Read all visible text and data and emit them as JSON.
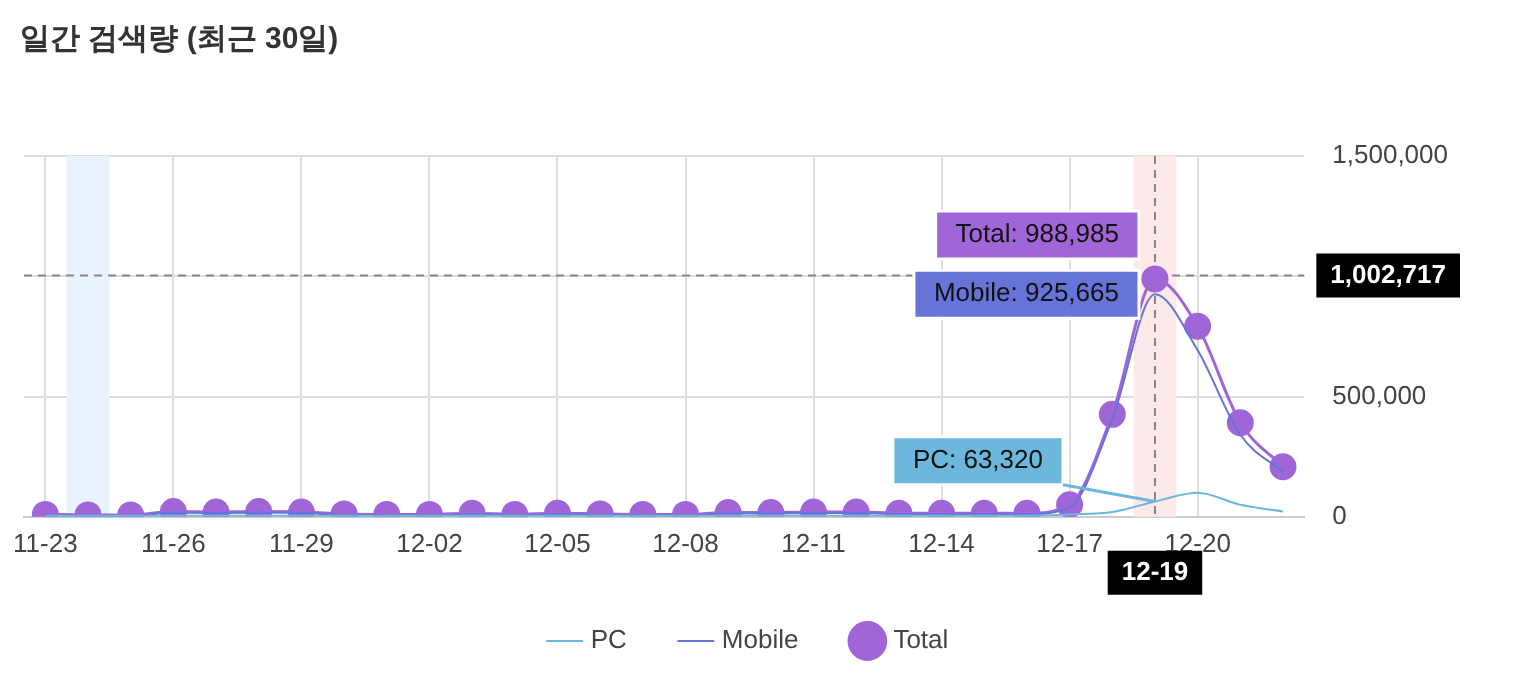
{
  "chart_data": {
    "type": "line",
    "title": "일간 검색량 (최근 30일)",
    "x": [
      "--11-23",
      "--11-24",
      "--11-25",
      "--11-26",
      "--11-27",
      "--11-28",
      "--11-29",
      "--11-30",
      "--12-01",
      "--12-02",
      "--12-03",
      "--12-04",
      "--12-05",
      "--12-06",
      "--12-07",
      "--12-08",
      "--12-09",
      "--12-10",
      "--12-11",
      "--12-12",
      "--12-13",
      "--12-14",
      "--12-15",
      "--12-16",
      "--12-17",
      "--12-18",
      "--12-19",
      "--12-20",
      "--12-21",
      "--12-22"
    ],
    "series": [
      {
        "name": "PC",
        "color": "#6cb8dc",
        "marker": "none",
        "values": [
          4000,
          4000,
          4000,
          4000,
          4000,
          4000,
          4000,
          4000,
          4000,
          4000,
          4000,
          4000,
          4000,
          4000,
          4000,
          4000,
          4000,
          4000,
          4000,
          4000,
          4000,
          4000,
          4000,
          4000,
          10000,
          20000,
          63320,
          100000,
          50000,
          22000
        ]
      },
      {
        "name": "Mobile",
        "color": "#6674d8",
        "marker": "none",
        "values": [
          6000,
          4000,
          4000,
          18000,
          16000,
          18000,
          16000,
          8000,
          6000,
          6000,
          11000,
          6000,
          11000,
          8000,
          6000,
          6000,
          14000,
          14000,
          16000,
          16000,
          11000,
          11000,
          11000,
          11000,
          40000,
          406000,
          925665,
          692000,
          341000,
          186000
        ]
      },
      {
        "name": "Total",
        "color": "#a066d8",
        "marker": "circle",
        "values": [
          10000,
          8000,
          8000,
          22000,
          20000,
          22000,
          20000,
          12000,
          10000,
          10000,
          15000,
          10000,
          15000,
          12000,
          10000,
          10000,
          18000,
          18000,
          20000,
          20000,
          15000,
          15000,
          15000,
          15000,
          50000,
          426000,
          988985,
          792000,
          391000,
          208000
        ]
      }
    ],
    "xlim": [
      "--11-22T12:00",
      "--12-22T12:00"
    ],
    "xticks": [
      {
        "value": "--11-23",
        "label": "11-23"
      },
      {
        "value": "--11-26",
        "label": "11-26"
      },
      {
        "value": "--11-29",
        "label": "11-29"
      },
      {
        "value": "--12-02",
        "label": "12-02"
      },
      {
        "value": "--12-05",
        "label": "12-05"
      },
      {
        "value": "--12-08",
        "label": "12-08"
      },
      {
        "value": "--12-11",
        "label": "12-11"
      },
      {
        "value": "--12-14",
        "label": "12-14"
      },
      {
        "value": "--12-17",
        "label": "12-17"
      },
      {
        "value": "--12-20",
        "label": "12-20"
      }
    ],
    "ylim": [
      0,
      1500000
    ],
    "yticks": [
      {
        "value": 0,
        "label": "0"
      },
      {
        "value": 500000,
        "label": "500,000"
      },
      {
        "value": 1000000,
        "label": null
      },
      {
        "value": 1500000,
        "label": "1,500,000"
      }
    ],
    "grid": true,
    "legend": "bottom",
    "bands": [
      {
        "axis": "x",
        "from": "--11-23T12:00",
        "to": "--11-24T12:00",
        "color": "#e8f3fd"
      },
      {
        "axis": "x",
        "from": "--12-18T12:00",
        "to": "--12-19T12:00",
        "color": "#fde8ea"
      }
    ],
    "ref_lines": [
      {
        "axis": "y",
        "value": 1002717,
        "label": "1,002,717",
        "line_style": "dashed",
        "color": "#888888"
      },
      {
        "axis": "x",
        "value": "--12-19",
        "label": "12-19",
        "line_style": "dashed",
        "color": "#888888"
      }
    ],
    "annotations": [
      {
        "text": "Total: 988,985",
        "x": "--12-19",
        "y": 988985
      },
      {
        "text": "Mobile: 925,665",
        "x": "--12-19",
        "y": 925665
      },
      {
        "text": "PC: 63,320",
        "x": "--12-19",
        "y": 63320
      }
    ]
  }
}
